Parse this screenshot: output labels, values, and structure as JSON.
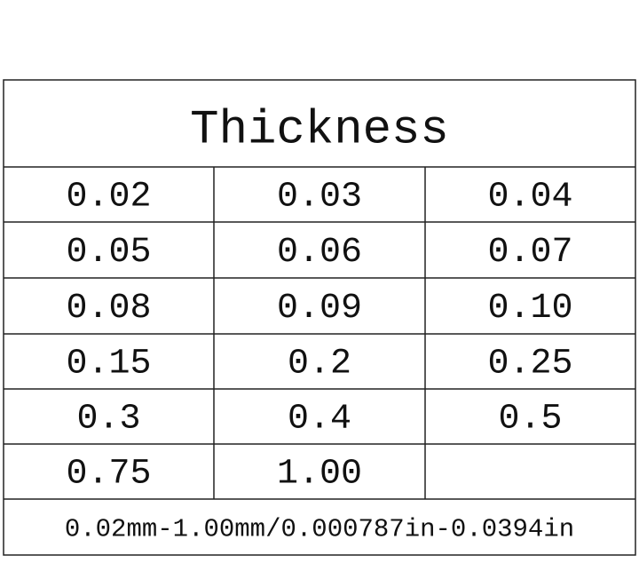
{
  "header": {
    "title": "Thickness"
  },
  "table": {
    "rows": [
      [
        "0.02",
        "0.03",
        "0.04"
      ],
      [
        "0.05",
        "0.06",
        "0.07"
      ],
      [
        "0.08",
        "0.09",
        "0.10"
      ],
      [
        "0.15",
        "0.2",
        "0.25"
      ],
      [
        "0.3",
        "0.4",
        "0.5"
      ],
      [
        "0.75",
        "1.00"
      ]
    ]
  },
  "footer": {
    "text": "0.02mm-1.00mm/0.000787in-0.0394in"
  }
}
